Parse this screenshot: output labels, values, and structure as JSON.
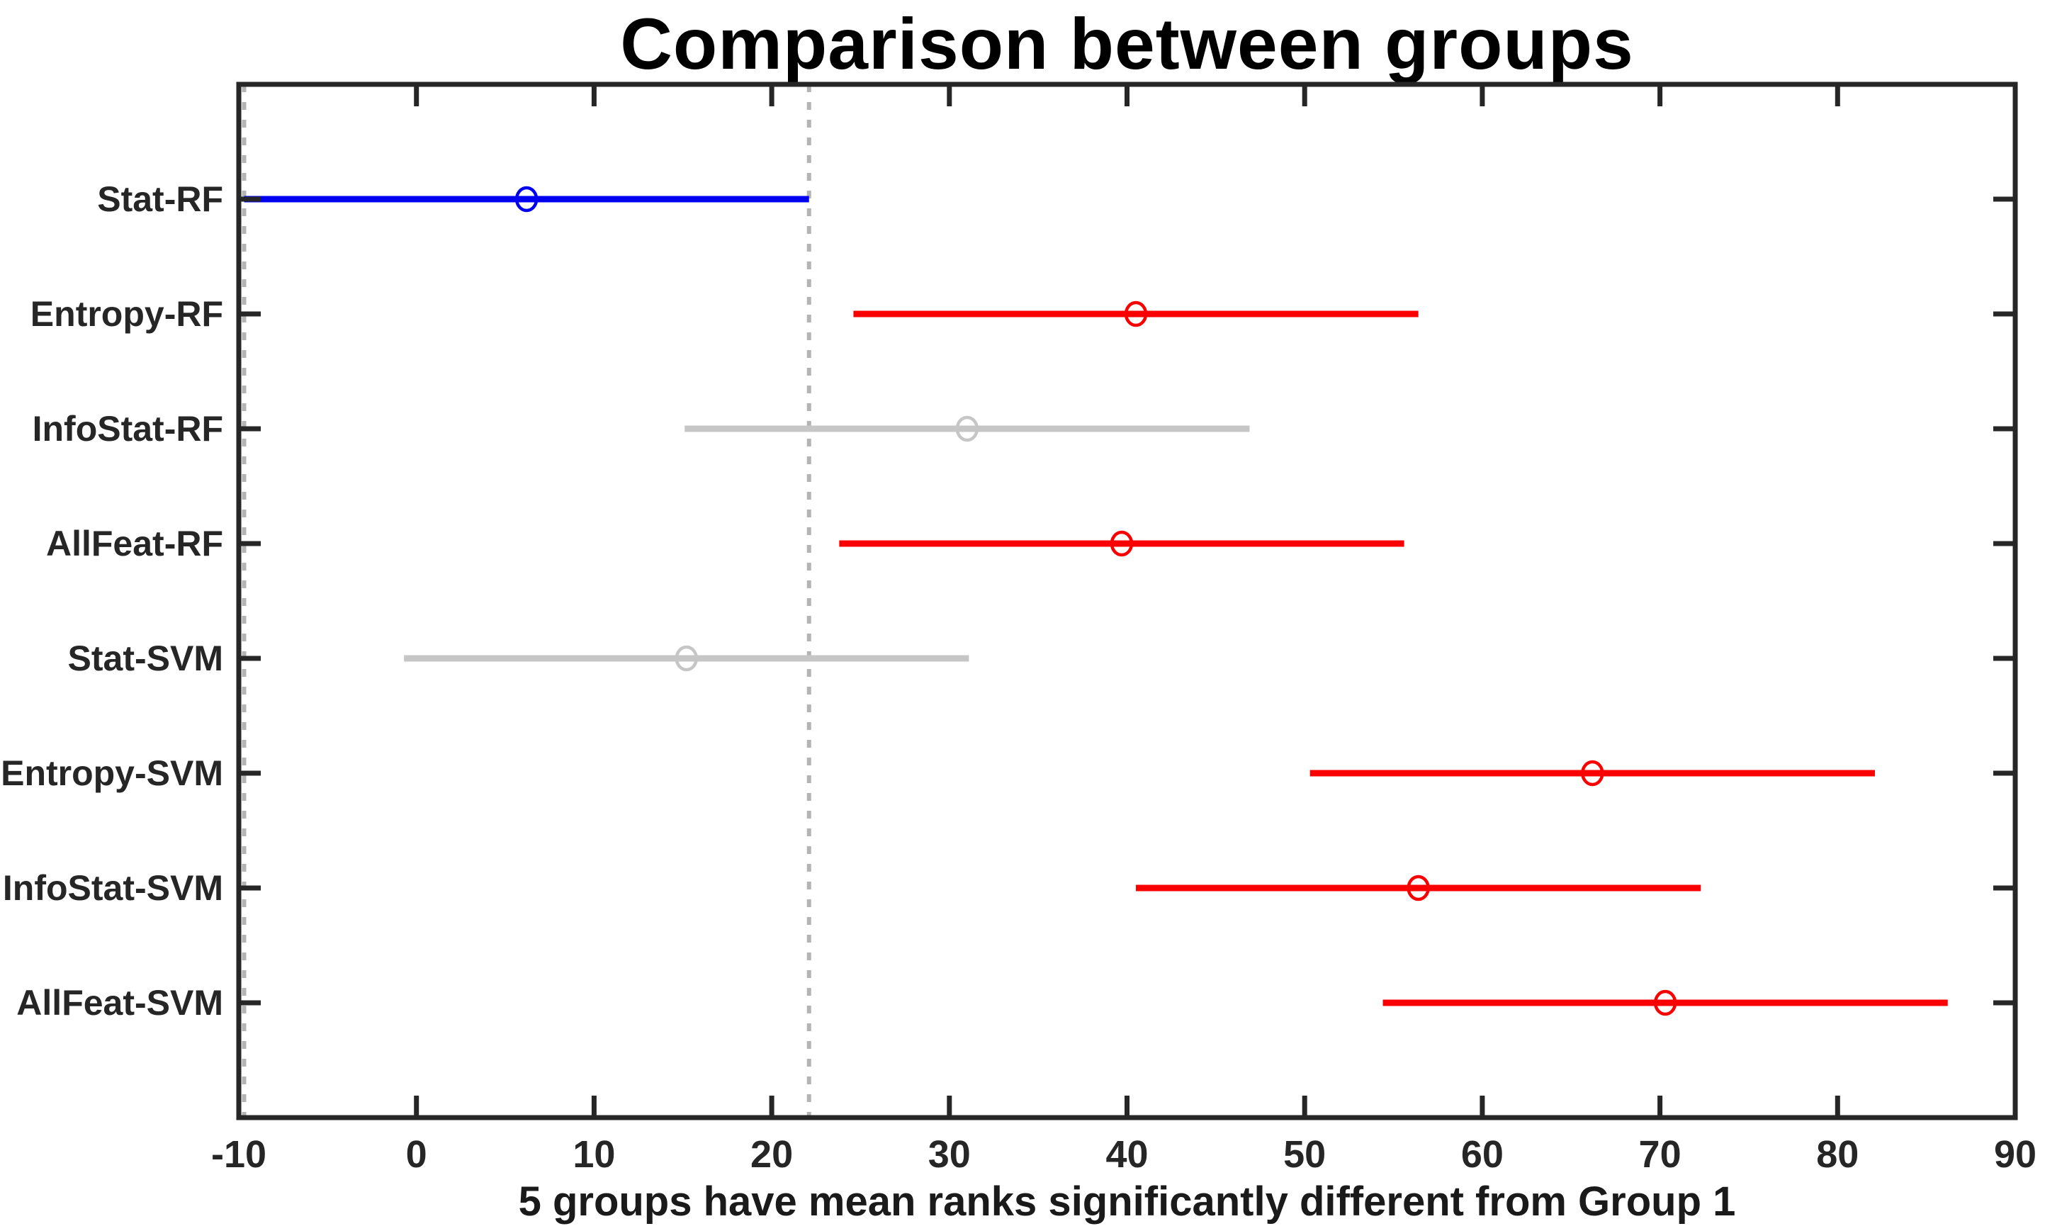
{
  "figure": {
    "title": "Comparison between groups",
    "xlabel": "5 groups have mean ranks significantly different from Group 1"
  },
  "chart_data": {
    "type": "scatter",
    "style": "horizontal-interval comparison plot (MATLAB multcompare of mean ranks)",
    "title": "Comparison between groups",
    "xlabel": "5 groups have mean ranks significantly different from Group 1",
    "ylabel": "",
    "xlim": [
      -10,
      90
    ],
    "xticks": [
      -10,
      0,
      10,
      20,
      30,
      40,
      50,
      60,
      70,
      80,
      90
    ],
    "grid": false,
    "legend": "none",
    "categories": [
      "Stat-RF",
      "Entropy-RF",
      "InfoStat-RF",
      "AllFeat-RF",
      "Stat-SVM",
      "Entropy-SVM",
      "InfoStat-SVM",
      "AllFeat-SVM"
    ],
    "series": [
      {
        "name": "Stat-RF",
        "mean": 6.2,
        "ci": [
          -9.7,
          22.1
        ],
        "color": "#0000f0",
        "role": "reference-group",
        "different_from_group1": false
      },
      {
        "name": "Entropy-RF",
        "mean": 40.5,
        "ci": [
          24.6,
          56.4
        ],
        "color": "#fb0000",
        "role": "significant",
        "different_from_group1": true
      },
      {
        "name": "InfoStat-RF",
        "mean": 31.0,
        "ci": [
          15.1,
          46.9
        ],
        "color": "#c6c6c6",
        "role": "not-significant",
        "different_from_group1": false
      },
      {
        "name": "AllFeat-RF",
        "mean": 39.7,
        "ci": [
          23.8,
          55.6
        ],
        "color": "#fb0000",
        "role": "significant",
        "different_from_group1": true
      },
      {
        "name": "Stat-SVM",
        "mean": 15.2,
        "ci": [
          -0.7,
          31.1
        ],
        "color": "#c6c6c6",
        "role": "not-significant",
        "different_from_group1": false
      },
      {
        "name": "Entropy-SVM",
        "mean": 66.2,
        "ci": [
          50.3,
          82.1
        ],
        "color": "#fb0000",
        "role": "significant",
        "different_from_group1": true
      },
      {
        "name": "InfoStat-SVM",
        "mean": 56.4,
        "ci": [
          40.5,
          72.3
        ],
        "color": "#fb0000",
        "role": "significant",
        "different_from_group1": true
      },
      {
        "name": "AllFeat-SVM",
        "mean": 70.3,
        "ci": [
          54.4,
          86.2
        ],
        "color": "#fb0000",
        "role": "significant",
        "different_from_group1": true
      }
    ],
    "reference_dashed_lines_x": [
      -9.7,
      22.1
    ],
    "colors": {
      "reference_group_line": "#0000f0",
      "significant_line": "#fb0000",
      "not_significant_line": "#c6c6c6",
      "dashed_reference_line": "#b4b4b4",
      "axis": "#262626",
      "title_text": "#000000",
      "tick_text": "#262626"
    }
  }
}
